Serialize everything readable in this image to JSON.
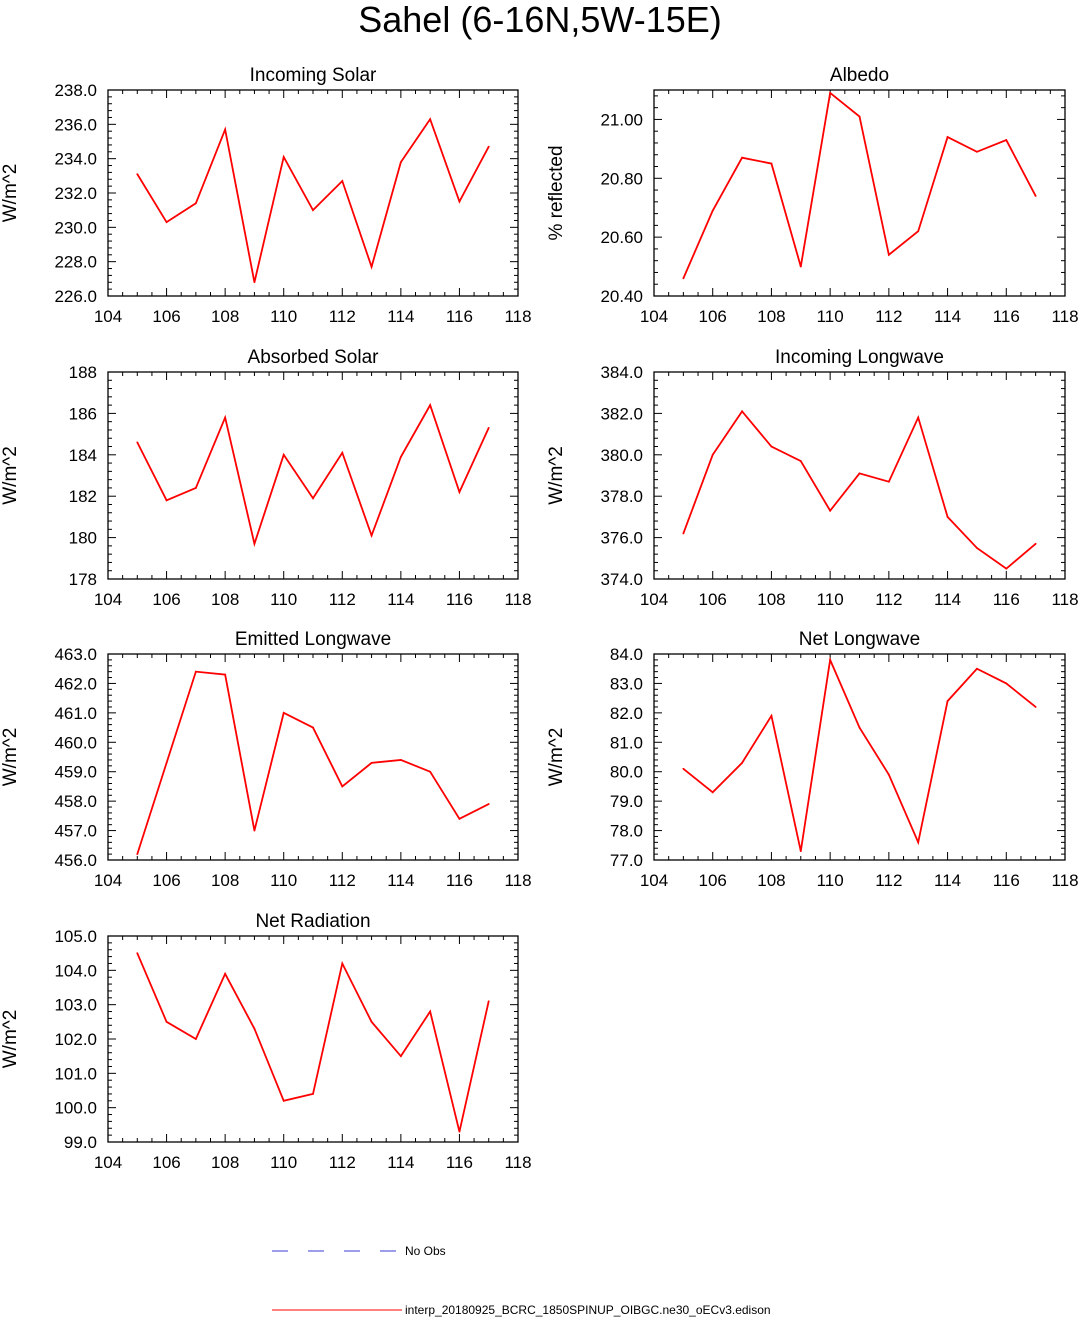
{
  "title": "Sahel (6-16N,5W-15E)",
  "colors": {
    "model": "#ff0000",
    "obs": "#3b3bd6",
    "axis": "#000000"
  },
  "legend": {
    "obs_label": "No Obs",
    "model_label": "interp_20180925_BCRC_1850SPINUP_OIBGC.ne30_oECv3.edison"
  },
  "chart_data": [
    {
      "type": "line",
      "title": "Incoming Solar",
      "ylabel": "W/m^2",
      "xlim": [
        104,
        118
      ],
      "ylim": [
        226,
        238
      ],
      "xticks": [
        104,
        106,
        108,
        110,
        112,
        114,
        116,
        118
      ],
      "yticks": [
        226,
        228,
        230,
        232,
        234,
        236,
        238
      ],
      "ytick_labels": [
        "226.0",
        "228.0",
        "230.0",
        "232.0",
        "234.0",
        "236.0",
        "238.0"
      ],
      "x": [
        105,
        106,
        107,
        108,
        109,
        110,
        111,
        112,
        113,
        114,
        115,
        116,
        117
      ],
      "series": [
        {
          "values": [
            233.1,
            230.3,
            231.4,
            235.7,
            226.8,
            234.1,
            231.0,
            232.7,
            227.7,
            233.8,
            236.3,
            231.5,
            234.7
          ]
        }
      ]
    },
    {
      "type": "line",
      "title": "Albedo",
      "ylabel": "% reflected",
      "xlim": [
        104,
        118
      ],
      "ylim": [
        20.4,
        21.1
      ],
      "xticks": [
        104,
        106,
        108,
        110,
        112,
        114,
        116,
        118
      ],
      "yticks": [
        20.4,
        20.6,
        20.8,
        21.0
      ],
      "ytick_labels": [
        "20.40",
        "20.60",
        "20.80",
        "21.00"
      ],
      "x": [
        105,
        106,
        107,
        108,
        109,
        110,
        111,
        112,
        113,
        114,
        115,
        116,
        117
      ],
      "series": [
        {
          "values": [
            20.46,
            20.69,
            20.87,
            20.85,
            20.5,
            21.09,
            21.01,
            20.54,
            20.62,
            20.94,
            20.89,
            20.93,
            20.74
          ]
        }
      ]
    },
    {
      "type": "line",
      "title": "Absorbed Solar",
      "ylabel": "W/m^2",
      "xlim": [
        104,
        118
      ],
      "ylim": [
        178,
        188
      ],
      "xticks": [
        104,
        106,
        108,
        110,
        112,
        114,
        116,
        118
      ],
      "yticks": [
        178,
        180,
        182,
        184,
        186,
        188
      ],
      "ytick_labels": [
        "178",
        "180",
        "182",
        "184",
        "186",
        "188"
      ],
      "x": [
        105,
        106,
        107,
        108,
        109,
        110,
        111,
        112,
        113,
        114,
        115,
        116,
        117
      ],
      "series": [
        {
          "values": [
            184.6,
            181.8,
            182.4,
            185.8,
            179.7,
            184.0,
            181.9,
            184.1,
            180.1,
            183.9,
            186.4,
            182.2,
            185.3
          ]
        }
      ]
    },
    {
      "type": "line",
      "title": "Incoming Longwave",
      "ylabel": "W/m^2",
      "xlim": [
        104,
        118
      ],
      "ylim": [
        374,
        384
      ],
      "xticks": [
        104,
        106,
        108,
        110,
        112,
        114,
        116,
        118
      ],
      "yticks": [
        374,
        376,
        378,
        380,
        382,
        384
      ],
      "ytick_labels": [
        "374.0",
        "376.0",
        "378.0",
        "380.0",
        "382.0",
        "384.0"
      ],
      "x": [
        105,
        106,
        107,
        108,
        109,
        110,
        111,
        112,
        113,
        114,
        115,
        116,
        117
      ],
      "series": [
        {
          "values": [
            376.2,
            380.0,
            382.1,
            380.4,
            379.7,
            377.3,
            379.1,
            378.7,
            381.8,
            377.0,
            375.5,
            374.5,
            375.7
          ]
        }
      ]
    },
    {
      "type": "line",
      "title": "Emitted Longwave",
      "ylabel": "W/m^2",
      "xlim": [
        104,
        118
      ],
      "ylim": [
        456,
        463
      ],
      "xticks": [
        104,
        106,
        108,
        110,
        112,
        114,
        116,
        118
      ],
      "yticks": [
        456,
        457,
        458,
        459,
        460,
        461,
        462,
        463
      ],
      "ytick_labels": [
        "456.0",
        "457.0",
        "458.0",
        "459.0",
        "460.0",
        "461.0",
        "462.0",
        "463.0"
      ],
      "x": [
        105,
        106,
        107,
        108,
        109,
        110,
        111,
        112,
        113,
        114,
        115,
        116,
        117
      ],
      "series": [
        {
          "values": [
            456.2,
            459.3,
            462.4,
            462.3,
            457.0,
            461.0,
            460.5,
            458.5,
            459.3,
            459.4,
            459.0,
            457.4,
            457.9
          ]
        }
      ]
    },
    {
      "type": "line",
      "title": "Net Longwave",
      "ylabel": "W/m^2",
      "xlim": [
        104,
        118
      ],
      "ylim": [
        77,
        84
      ],
      "xticks": [
        104,
        106,
        108,
        110,
        112,
        114,
        116,
        118
      ],
      "yticks": [
        77,
        78,
        79,
        80,
        81,
        82,
        83,
        84
      ],
      "ytick_labels": [
        "77.0",
        "78.0",
        "79.0",
        "80.0",
        "81.0",
        "82.0",
        "83.0",
        "84.0"
      ],
      "x": [
        105,
        106,
        107,
        108,
        109,
        110,
        111,
        112,
        113,
        114,
        115,
        116,
        117
      ],
      "series": [
        {
          "values": [
            80.1,
            79.3,
            80.3,
            81.9,
            77.3,
            83.8,
            81.5,
            79.9,
            77.6,
            82.4,
            83.5,
            83.0,
            82.2
          ]
        }
      ]
    },
    {
      "type": "line",
      "title": "Net Radiation",
      "ylabel": "W/m^2",
      "xlim": [
        104,
        118
      ],
      "ylim": [
        99,
        105
      ],
      "xticks": [
        104,
        106,
        108,
        110,
        112,
        114,
        116,
        118
      ],
      "yticks": [
        99,
        100,
        101,
        102,
        103,
        104,
        105
      ],
      "ytick_labels": [
        "99.0",
        "100.0",
        "101.0",
        "102.0",
        "103.0",
        "104.0",
        "105.0"
      ],
      "x": [
        105,
        106,
        107,
        108,
        109,
        110,
        111,
        112,
        113,
        114,
        115,
        116,
        117
      ],
      "series": [
        {
          "values": [
            104.5,
            102.5,
            102.0,
            103.9,
            102.3,
            100.2,
            100.4,
            104.2,
            102.5,
            101.5,
            102.8,
            99.3,
            103.1
          ]
        }
      ]
    }
  ]
}
